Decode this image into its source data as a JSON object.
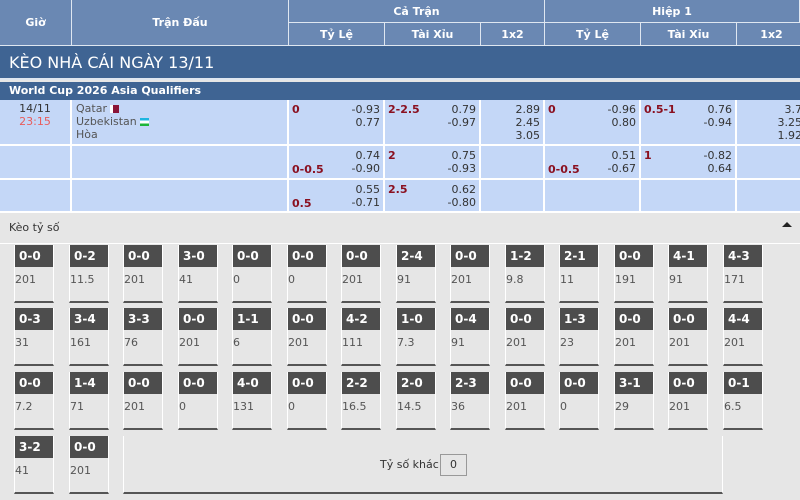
{
  "header": {
    "gio": "Giờ",
    "tran_dau": "Trận Đấu",
    "ca_tran": "Cả Trận",
    "hiep1": "Hiệp 1",
    "ty_le": "Tỷ Lệ",
    "tai_xiu": "Tài Xỉu",
    "x12": "1x2"
  },
  "title": "KÈO NHÀ CÁI NGÀY 13/11",
  "league": "World Cup 2026 Asia Qualifiers",
  "match": {
    "date": "14/11",
    "time": "23:15",
    "home": "Qatar",
    "away": "Uzbekistan",
    "draw": "Hòa"
  },
  "rows": [
    {
      "ft_hdp": "0",
      "ft_hdp_a": "-0.93",
      "ft_hdp_b": "0.77",
      "ft_ou": "2-2.5",
      "ft_ou_a": "0.79",
      "ft_ou_b": "-0.97",
      "ft_1": "2.89",
      "ft_x": "2.45",
      "ft_2": "3.05",
      "h1_hdp": "0",
      "h1_hdp_a": "-0.96",
      "h1_hdp_b": "0.80",
      "h1_ou": "0.5-1",
      "h1_ou_a": "0.76",
      "h1_ou_b": "-0.94",
      "h1_1": "3.7",
      "h1_x": "3.25",
      "h1_2": "1.92"
    },
    {
      "ft_hdp": "0-0.5",
      "ft_hdp_a": "0.74",
      "ft_hdp_b": "-0.90",
      "ft_ou": "2",
      "ft_ou_a": "0.75",
      "ft_ou_b": "-0.93",
      "h1_hdp": "0-0.5",
      "h1_hdp_a": "0.51",
      "h1_hdp_b": "-0.67",
      "h1_ou": "1",
      "h1_ou_a": "-0.82",
      "h1_ou_b": "0.64"
    },
    {
      "ft_hdp": "0.5",
      "ft_hdp_a": "0.55",
      "ft_hdp_b": "-0.71",
      "ft_ou": "2.5",
      "ft_ou_a": "0.62",
      "ft_ou_b": "-0.80"
    }
  ],
  "score_section": {
    "title": "Kèo tỷ số",
    "other_label": "Tỷ số khác",
    "other_value": "0"
  },
  "scores": [
    [
      [
        "0-0",
        "201"
      ],
      [
        "0-2",
        "11.5"
      ],
      [
        "0-0",
        "201"
      ],
      [
        "3-0",
        "41"
      ],
      [
        "0-0",
        "0"
      ],
      [
        "0-0",
        "0"
      ],
      [
        "0-0",
        "201"
      ],
      [
        "2-4",
        "91"
      ],
      [
        "0-0",
        "201"
      ],
      [
        "1-2",
        "9.8"
      ],
      [
        "2-1",
        "11"
      ],
      [
        "0-0",
        "191"
      ],
      [
        "4-1",
        "91"
      ],
      [
        "4-3",
        "171"
      ]
    ],
    [
      [
        "0-3",
        "31"
      ],
      [
        "3-4",
        "161"
      ],
      [
        "3-3",
        "76"
      ],
      [
        "0-0",
        "201"
      ],
      [
        "1-1",
        "6"
      ],
      [
        "0-0",
        "201"
      ],
      [
        "4-2",
        "111"
      ],
      [
        "1-0",
        "7.3"
      ],
      [
        "0-4",
        "91"
      ],
      [
        "0-0",
        "201"
      ],
      [
        "1-3",
        "23"
      ],
      [
        "0-0",
        "201"
      ],
      [
        "0-0",
        "201"
      ],
      [
        "4-4",
        "201"
      ]
    ],
    [
      [
        "0-0",
        "7.2"
      ],
      [
        "1-4",
        "71"
      ],
      [
        "0-0",
        "201"
      ],
      [
        "0-0",
        "0"
      ],
      [
        "4-0",
        "131"
      ],
      [
        "0-0",
        "0"
      ],
      [
        "2-2",
        "16.5"
      ],
      [
        "2-0",
        "14.5"
      ],
      [
        "2-3",
        "36"
      ],
      [
        "0-0",
        "201"
      ],
      [
        "0-0",
        "0"
      ],
      [
        "3-1",
        "29"
      ],
      [
        "0-0",
        "201"
      ],
      [
        "0-1",
        "6.5"
      ]
    ],
    [
      [
        "3-2",
        "41"
      ],
      [
        "0-0",
        "201"
      ]
    ]
  ],
  "colors": {
    "header": "#6a88b3",
    "title_bar": "#3f6493",
    "row": "#c4d7f7",
    "odds_red": "#8a1020",
    "score_head": "#4d4d4d"
  }
}
